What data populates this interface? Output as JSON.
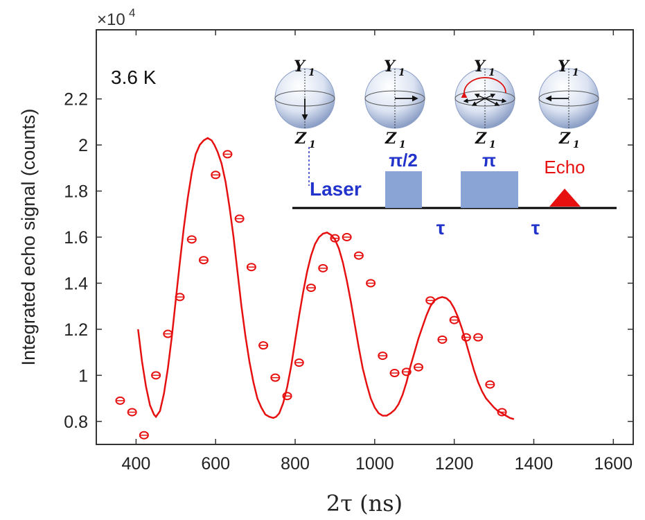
{
  "chart_data": {
    "type": "scatter",
    "xlabel": "2τ (ns)",
    "ylabel": "Integrated echo signal (counts)",
    "y_multiplier": "×10",
    "y_exponent": "4",
    "temperature_label": "3.6 K",
    "xlim": [
      300,
      1650
    ],
    "ylim": [
      0.7,
      2.5
    ],
    "x_ticks": [
      400,
      600,
      800,
      1000,
      1200,
      1400,
      1600
    ],
    "x_tick_labels": [
      "400",
      "600",
      "800",
      "1000",
      "1200",
      "1400",
      "1600"
    ],
    "y_ticks": [
      0.8,
      1.0,
      1.2,
      1.4,
      1.6,
      1.8,
      2.0,
      2.2
    ],
    "y_tick_labels": [
      "0.8",
      "1",
      "1.2",
      "1.4",
      "1.6",
      "1.8",
      "2",
      "2.2"
    ],
    "grid": false,
    "series": [
      {
        "kind": "scatter",
        "color": "#e61010",
        "x": [
          360,
          390,
          420,
          450,
          480,
          510,
          540,
          570,
          600,
          630,
          660,
          690,
          720,
          750,
          780,
          810,
          840,
          870,
          900,
          930,
          960,
          990,
          1020,
          1050,
          1080,
          1110,
          1140,
          1170,
          1200,
          1230,
          1260,
          1290,
          1320
        ],
        "y": [
          0.89,
          0.84,
          0.74,
          1.0,
          1.18,
          1.34,
          1.59,
          1.5,
          1.87,
          1.96,
          1.68,
          1.47,
          1.13,
          0.99,
          0.91,
          1.055,
          1.38,
          1.465,
          1.595,
          1.6,
          1.52,
          1.4,
          1.085,
          1.01,
          1.015,
          1.035,
          1.325,
          1.155,
          1.24,
          1.165,
          1.165,
          0.96,
          0.84
        ]
      },
      {
        "kind": "line",
        "color": "#e61010",
        "x": [
          405,
          415,
          425,
          435,
          445,
          450,
          460,
          470,
          480,
          490,
          500,
          510,
          520,
          530,
          540,
          550,
          560,
          570,
          580,
          590,
          597,
          605,
          615,
          625,
          635,
          645,
          655,
          665,
          675,
          685,
          695,
          705,
          715,
          725,
          735,
          745,
          752,
          760,
          770,
          780,
          790,
          800,
          810,
          820,
          830,
          840,
          850,
          860,
          870,
          880,
          890,
          900,
          910,
          920,
          930,
          940,
          950,
          960,
          970,
          980,
          990,
          1000,
          1010,
          1020,
          1030,
          1040,
          1050,
          1060,
          1070,
          1080,
          1090,
          1100,
          1110,
          1120,
          1130,
          1140,
          1150,
          1160,
          1170,
          1180,
          1190,
          1200,
          1210,
          1220,
          1230,
          1240,
          1250,
          1260,
          1270,
          1280,
          1290,
          1300,
          1310,
          1320,
          1330,
          1340,
          1350
        ],
        "y": [
          1.2,
          1.06,
          0.95,
          0.87,
          0.83,
          0.82,
          0.845,
          0.92,
          1.03,
          1.17,
          1.33,
          1.49,
          1.64,
          1.77,
          1.88,
          1.96,
          2.0,
          2.02,
          2.03,
          2.02,
          2.0,
          1.97,
          1.92,
          1.84,
          1.73,
          1.6,
          1.45,
          1.3,
          1.17,
          1.06,
          0.97,
          0.9,
          0.86,
          0.83,
          0.82,
          0.815,
          0.82,
          0.835,
          0.88,
          0.95,
          1.04,
          1.15,
          1.26,
          1.36,
          1.45,
          1.52,
          1.57,
          1.6,
          1.615,
          1.62,
          1.61,
          1.59,
          1.55,
          1.49,
          1.41,
          1.32,
          1.22,
          1.12,
          1.03,
          0.96,
          0.9,
          0.86,
          0.835,
          0.825,
          0.825,
          0.835,
          0.85,
          0.875,
          0.915,
          0.97,
          1.04,
          1.1,
          1.16,
          1.21,
          1.26,
          1.3,
          1.325,
          1.335,
          1.34,
          1.335,
          1.32,
          1.29,
          1.25,
          1.2,
          1.14,
          1.08,
          1.02,
          0.97,
          0.93,
          0.9,
          0.88,
          0.86,
          0.845,
          0.835,
          0.825,
          0.815,
          0.81
        ]
      }
    ],
    "inset": {
      "laser_label": "Laser",
      "pulse1_label": "π/2",
      "pulse2_label": "π",
      "echo_label": "Echo",
      "tau_labels": [
        "τ",
        "τ"
      ],
      "sphere_top_label": "Y",
      "sphere_bottom_label": "Z",
      "sphere_subscript": "1",
      "pulse_color": "#8aa4d6",
      "label_color": "#2233cc",
      "echo_color": "#e61010"
    }
  }
}
